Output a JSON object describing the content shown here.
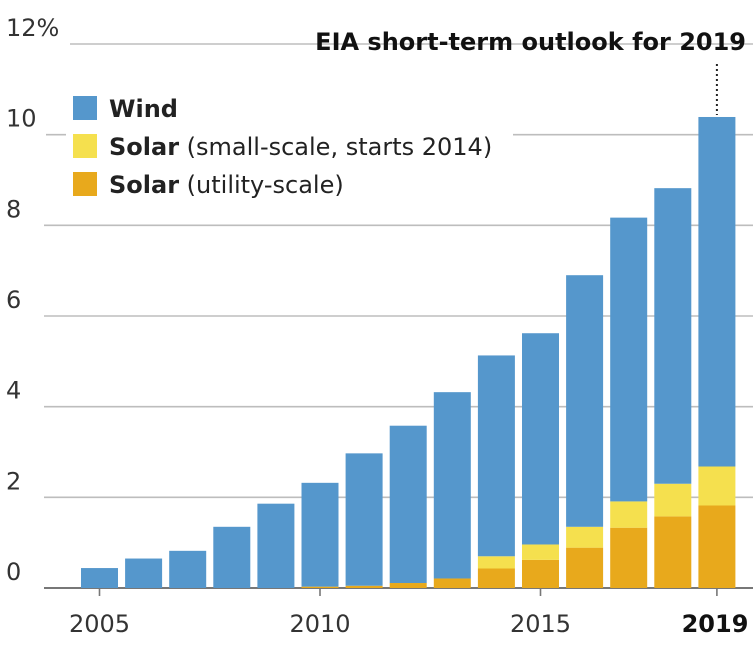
{
  "chart_data": {
    "type": "bar",
    "stacked": true,
    "x": [
      2005,
      2006,
      2007,
      2008,
      2009,
      2010,
      2011,
      2012,
      2013,
      2014,
      2015,
      2016,
      2017,
      2018,
      2019
    ],
    "x_tick_labels": [
      "2005",
      "2010",
      "2015",
      "2019"
    ],
    "highlight_x": 2019,
    "series": [
      {
        "name": "Solar",
        "name_suffix": "(utility-scale)",
        "color": "#e8a91c",
        "values": [
          0,
          0,
          0,
          0,
          0,
          0.03,
          0.05,
          0.11,
          0.21,
          0.43,
          0.62,
          0.89,
          1.33,
          1.58,
          1.82
        ]
      },
      {
        "name": "Solar",
        "name_suffix": "(small-scale, starts 2014)",
        "color": "#f5e04e",
        "values": [
          0,
          0,
          0,
          0,
          0,
          0,
          0,
          0,
          0,
          0.27,
          0.34,
          0.46,
          0.58,
          0.72,
          0.86
        ]
      },
      {
        "name": "Wind",
        "name_suffix": "",
        "color": "#5597cc",
        "values": [
          0.44,
          0.65,
          0.82,
          1.35,
          1.86,
          2.29,
          2.92,
          3.47,
          4.11,
          4.43,
          4.66,
          5.55,
          6.26,
          6.52,
          7.71
        ]
      }
    ],
    "legend_order": [
      2,
      1,
      0
    ],
    "ylim": [
      0,
      12
    ],
    "y_ticks": [
      0,
      2,
      4,
      6,
      8,
      10,
      12
    ],
    "y_tick_labels": [
      "0",
      "2",
      "4",
      "6",
      "8",
      "10",
      "12%"
    ],
    "grid": true,
    "legend_position": "top-left",
    "annotation": "EIA short-term outlook for 2019"
  }
}
